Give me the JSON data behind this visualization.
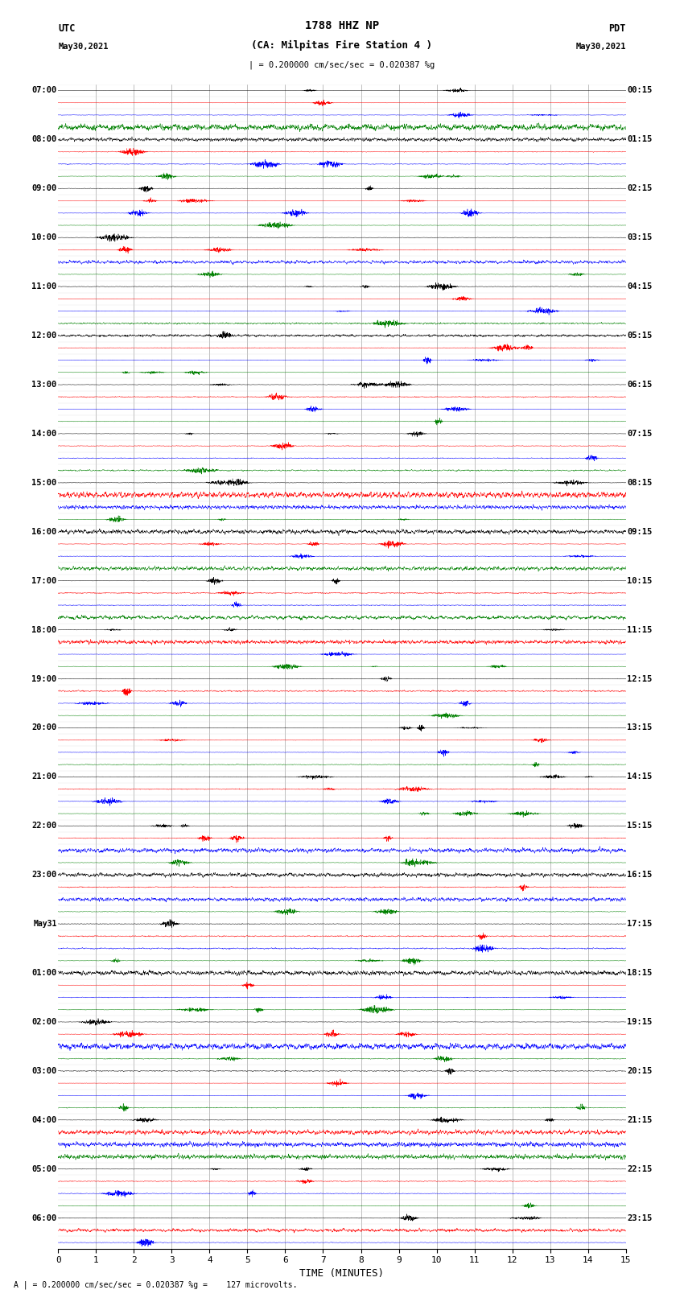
{
  "title_line1": "1788 HHZ NP",
  "title_line2": "(CA: Milpitas Fire Station 4 )",
  "scale_text": "| = 0.200000 cm/sec/sec = 0.020387 %g",
  "left_label_top": "UTC",
  "left_label_date": "May30,2021",
  "right_label_top": "PDT",
  "right_label_date": "May30,2021",
  "bottom_label": "TIME (MINUTES)",
  "footer_text": "A | = 0.200000 cm/sec/sec = 0.020387 %g =    127 microvolts.",
  "xlabel_ticks": [
    0,
    1,
    2,
    3,
    4,
    5,
    6,
    7,
    8,
    9,
    10,
    11,
    12,
    13,
    14,
    15
  ],
  "left_times": [
    "07:00",
    "",
    "",
    "",
    "08:00",
    "",
    "",
    "",
    "09:00",
    "",
    "",
    "",
    "10:00",
    "",
    "",
    "",
    "11:00",
    "",
    "",
    "",
    "12:00",
    "",
    "",
    "",
    "13:00",
    "",
    "",
    "",
    "14:00",
    "",
    "",
    "",
    "15:00",
    "",
    "",
    "",
    "16:00",
    "",
    "",
    "",
    "17:00",
    "",
    "",
    "",
    "18:00",
    "",
    "",
    "",
    "19:00",
    "",
    "",
    "",
    "20:00",
    "",
    "",
    "",
    "21:00",
    "",
    "",
    "",
    "22:00",
    "",
    "",
    "",
    "23:00",
    "",
    "",
    "",
    "May31",
    "",
    "",
    "",
    "01:00",
    "",
    "",
    "",
    "02:00",
    "",
    "",
    "",
    "03:00",
    "",
    "",
    "",
    "04:00",
    "",
    "",
    "",
    "05:00",
    "",
    "",
    "",
    "06:00",
    "",
    ""
  ],
  "right_times": [
    "00:15",
    "",
    "",
    "",
    "01:15",
    "",
    "",
    "",
    "02:15",
    "",
    "",
    "",
    "03:15",
    "",
    "",
    "",
    "04:15",
    "",
    "",
    "",
    "05:15",
    "",
    "",
    "",
    "06:15",
    "",
    "",
    "",
    "07:15",
    "",
    "",
    "",
    "08:15",
    "",
    "",
    "",
    "09:15",
    "",
    "",
    "",
    "10:15",
    "",
    "",
    "",
    "11:15",
    "",
    "",
    "",
    "12:15",
    "",
    "",
    "",
    "13:15",
    "",
    "",
    "",
    "14:15",
    "",
    "",
    "",
    "15:15",
    "",
    "",
    "",
    "16:15",
    "",
    "",
    "",
    "17:15",
    "",
    "",
    "",
    "18:15",
    "",
    "",
    "",
    "19:15",
    "",
    "",
    "",
    "20:15",
    "",
    "",
    "",
    "21:15",
    "",
    "",
    "",
    "22:15",
    "",
    "",
    "",
    "23:15",
    "",
    ""
  ],
  "trace_colors": [
    "black",
    "red",
    "blue",
    "green"
  ],
  "num_rows": 95,
  "trace_amplitude": 0.38,
  "background_color": "white",
  "fig_width": 8.5,
  "fig_height": 16.13,
  "dpi": 100,
  "xlim": [
    0,
    15
  ],
  "noise_seed": 42
}
